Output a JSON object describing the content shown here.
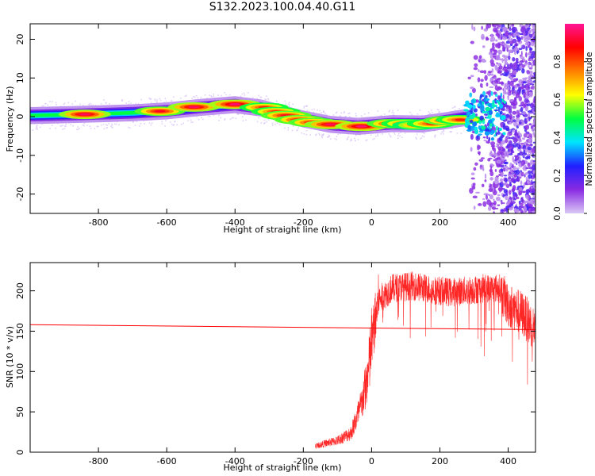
{
  "title": "S132.2023.100.04.40.G11",
  "chart_data": [
    {
      "type": "heatmap",
      "xlabel": "Height of straight line (km)",
      "ylabel": "Frequency (Hz)",
      "xlim": [
        -1000,
        480
      ],
      "ylim": [
        -25,
        24
      ],
      "xticks": [
        -800,
        -600,
        -400,
        -200,
        0,
        200,
        400
      ],
      "yticks": [
        -20,
        -10,
        0,
        10,
        20
      ],
      "colorbar": {
        "label": "Normalized spectral amplitude",
        "range": [
          0,
          1
        ],
        "ticks": [
          0.0,
          0.2,
          0.4,
          0.6,
          0.8
        ],
        "colormap": [
          "#d9c8f5",
          "#8a2be2",
          "#2020ff",
          "#00e5ff",
          "#00ff40",
          "#ffff00",
          "#ff7f00",
          "#ff0000",
          "#ff1493"
        ]
      },
      "ridge": [
        {
          "x": -990,
          "y": 0.3
        },
        {
          "x": -850,
          "y": 0.6
        },
        {
          "x": -700,
          "y": 1.0
        },
        {
          "x": -600,
          "y": 1.5
        },
        {
          "x": -500,
          "y": 2.4
        },
        {
          "x": -400,
          "y": 3.1
        },
        {
          "x": -320,
          "y": 2.2
        },
        {
          "x": -250,
          "y": 0.5
        },
        {
          "x": -200,
          "y": -0.6
        },
        {
          "x": -120,
          "y": -2.0
        },
        {
          "x": -40,
          "y": -2.5
        },
        {
          "x": 60,
          "y": -1.8
        },
        {
          "x": 150,
          "y": -1.9
        },
        {
          "x": 220,
          "y": -1.0
        },
        {
          "x": 270,
          "y": -0.3
        }
      ],
      "hot_spots": [
        {
          "x": -840,
          "y": 0.6,
          "amp": 0.95
        },
        {
          "x": -620,
          "y": 1.4,
          "amp": 0.9
        },
        {
          "x": -520,
          "y": 2.5,
          "amp": 0.95
        },
        {
          "x": -400,
          "y": 3.2,
          "amp": 0.97
        },
        {
          "x": -315,
          "y": 2.4,
          "amp": 0.85
        },
        {
          "x": -280,
          "y": 1.3,
          "amp": 0.85
        },
        {
          "x": -250,
          "y": 0.3,
          "amp": 0.9
        },
        {
          "x": -210,
          "y": -0.8,
          "amp": 0.9
        },
        {
          "x": -170,
          "y": -1.5,
          "amp": 0.9
        },
        {
          "x": -120,
          "y": -2.0,
          "amp": 0.95
        },
        {
          "x": -30,
          "y": -2.5,
          "amp": 0.97
        },
        {
          "x": 60,
          "y": -1.8,
          "amp": 0.9
        },
        {
          "x": 100,
          "y": -1.8,
          "amp": 0.85
        },
        {
          "x": 130,
          "y": -2.2,
          "amp": 0.8
        },
        {
          "x": 175,
          "y": -1.8,
          "amp": 0.85
        },
        {
          "x": 225,
          "y": -1.0,
          "amp": 0.9
        },
        {
          "x": 260,
          "y": -0.8,
          "amp": 0.85
        }
      ],
      "turbulent_region": {
        "x_start": 280,
        "x_end": 480,
        "y_min": -25,
        "y_max": 24
      }
    },
    {
      "type": "line",
      "xlabel": "Height of straight line (km)",
      "ylabel": "SNR (10 * v/v)",
      "xlim": [
        -1000,
        480
      ],
      "ylim": [
        0,
        235
      ],
      "xticks": [
        -800,
        -600,
        -400,
        -200,
        0,
        200,
        400
      ],
      "yticks": [
        0,
        50,
        100,
        150,
        200
      ],
      "color": "#ff0000",
      "trend_line": {
        "x": [
          -1000,
          480
        ],
        "y": [
          158,
          152
        ]
      },
      "series_outline": [
        {
          "x": -165,
          "y": 8
        },
        {
          "x": -100,
          "y": 15
        },
        {
          "x": -60,
          "y": 25
        },
        {
          "x": -30,
          "y": 60
        },
        {
          "x": -10,
          "y": 100
        },
        {
          "x": 0,
          "y": 140
        },
        {
          "x": 20,
          "y": 190
        },
        {
          "x": 60,
          "y": 205
        },
        {
          "x": 120,
          "y": 208
        },
        {
          "x": 180,
          "y": 203
        },
        {
          "x": 230,
          "y": 200
        },
        {
          "x": 280,
          "y": 202
        },
        {
          "x": 330,
          "y": 205
        },
        {
          "x": 375,
          "y": 205
        },
        {
          "x": 400,
          "y": 185
        },
        {
          "x": 440,
          "y": 175
        },
        {
          "x": 480,
          "y": 155
        }
      ]
    }
  ]
}
